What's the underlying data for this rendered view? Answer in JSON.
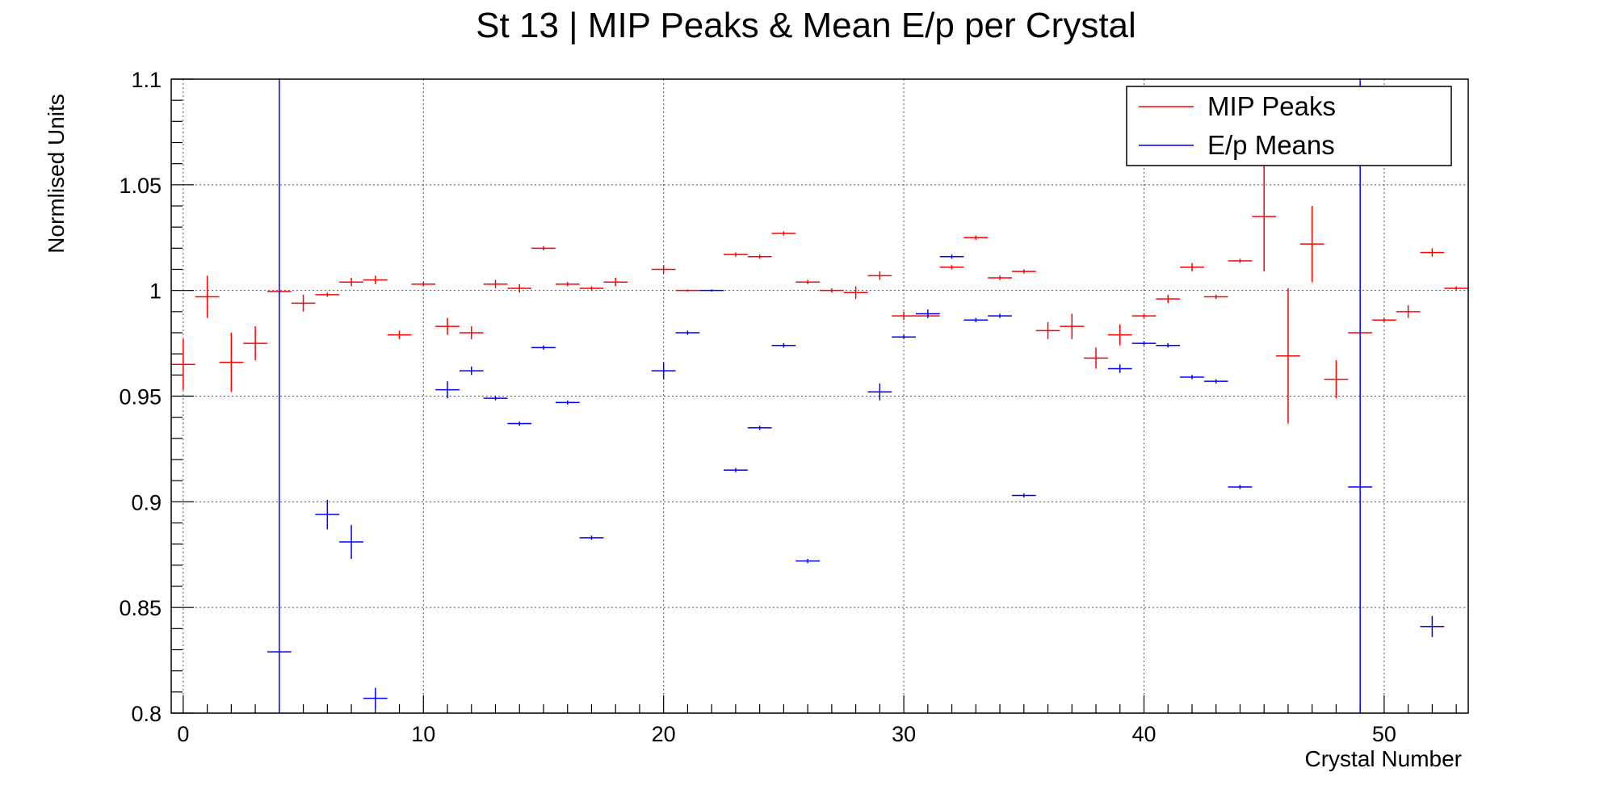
{
  "chart_data": {
    "type": "scatter",
    "title": "St 13 | MIP Peaks & Mean E/p per Crystal",
    "xlabel": "Crystal Number",
    "ylabel": "Normlised Units",
    "xlim": [
      -0.5,
      53.5
    ],
    "ylim": [
      0.8,
      1.1
    ],
    "xticks": [
      0,
      10,
      20,
      30,
      40,
      50
    ],
    "yticks": [
      0.8,
      0.85,
      0.9,
      0.95,
      1,
      1.05,
      1.1
    ],
    "xtick_labels": [
      "0",
      "10",
      "20",
      "30",
      "40",
      "50"
    ],
    "ytick_labels": [
      "0.8",
      "0.85",
      "0.9",
      "0.95",
      "1",
      "1.05",
      "1.1"
    ],
    "grid": true,
    "legend_position": "top-right",
    "series": [
      {
        "name": "MIP Peaks",
        "color": "#ff0000",
        "x": [
          0,
          1,
          2,
          3,
          4,
          5,
          6,
          7,
          8,
          9,
          10,
          11,
          12,
          13,
          14,
          15,
          16,
          17,
          18,
          20,
          21,
          23,
          24,
          25,
          26,
          27,
          28,
          29,
          30,
          31,
          32,
          33,
          34,
          35,
          36,
          37,
          38,
          39,
          40,
          41,
          42,
          43,
          44,
          45,
          46,
          47,
          48,
          49,
          50,
          51,
          52,
          53
        ],
        "y": [
          0.965,
          0.997,
          0.966,
          0.975,
          0.9995,
          0.994,
          0.998,
          1.004,
          1.005,
          0.979,
          1.003,
          0.983,
          0.98,
          1.003,
          1.001,
          1.02,
          1.003,
          1.001,
          1.004,
          1.01,
          1.0,
          1.017,
          1.016,
          1.027,
          1.004,
          1.0,
          0.999,
          1.007,
          0.988,
          0.988,
          1.011,
          1.025,
          1.006,
          1.009,
          0.981,
          0.983,
          0.968,
          0.979,
          0.988,
          0.996,
          1.011,
          0.997,
          1.014,
          1.035,
          0.969,
          1.022,
          0.958,
          0.98,
          0.986,
          0.99,
          1.018,
          1.001
        ],
        "yerr": [
          0.012,
          0.01,
          0.014,
          0.008,
          0.0005,
          0.004,
          0.001,
          0.002,
          0.002,
          0.002,
          0.001,
          0.004,
          0.003,
          0.002,
          0.002,
          0.001,
          0.001,
          0.001,
          0.002,
          0.002,
          0.0005,
          0.001,
          0.001,
          0.001,
          0.001,
          0.001,
          0.003,
          0.002,
          0.002,
          0.001,
          0.001,
          0.001,
          0.001,
          0.001,
          0.004,
          0.006,
          0.005,
          0.005,
          0.001,
          0.002,
          0.002,
          0.001,
          0.001,
          0.026,
          0.032,
          0.018,
          0.009,
          0.0005,
          0.001,
          0.003,
          0.002,
          0.001
        ]
      },
      {
        "name": "E/p Means",
        "color": "#0000ff",
        "x": [
          4,
          6,
          7,
          8,
          11,
          12,
          13,
          14,
          15,
          16,
          17,
          20,
          21,
          22,
          23,
          24,
          25,
          26,
          29,
          30,
          31,
          32,
          33,
          34,
          35,
          39,
          40,
          41,
          42,
          43,
          44,
          49,
          52
        ],
        "y": [
          0.829,
          0.894,
          0.881,
          0.807,
          0.953,
          0.962,
          0.949,
          0.937,
          0.973,
          0.947,
          0.883,
          0.962,
          0.98,
          1.0,
          0.915,
          0.935,
          0.974,
          0.872,
          0.952,
          0.978,
          0.989,
          1.016,
          0.986,
          0.988,
          0.903,
          0.963,
          0.975,
          0.974,
          0.959,
          0.957,
          0.907,
          0.907,
          0.841
        ],
        "yerr": [
          0.5,
          0.007,
          0.008,
          0.005,
          0.004,
          0.002,
          0.001,
          0.001,
          0.001,
          0.001,
          0.001,
          0.004,
          0.001,
          0.0005,
          0.001,
          0.001,
          0.001,
          0.001,
          0.004,
          0.001,
          0.002,
          0.001,
          0.001,
          0.001,
          0.001,
          0.002,
          0.001,
          0.001,
          0.001,
          0.001,
          0.001,
          0.5,
          0.005
        ]
      }
    ]
  }
}
